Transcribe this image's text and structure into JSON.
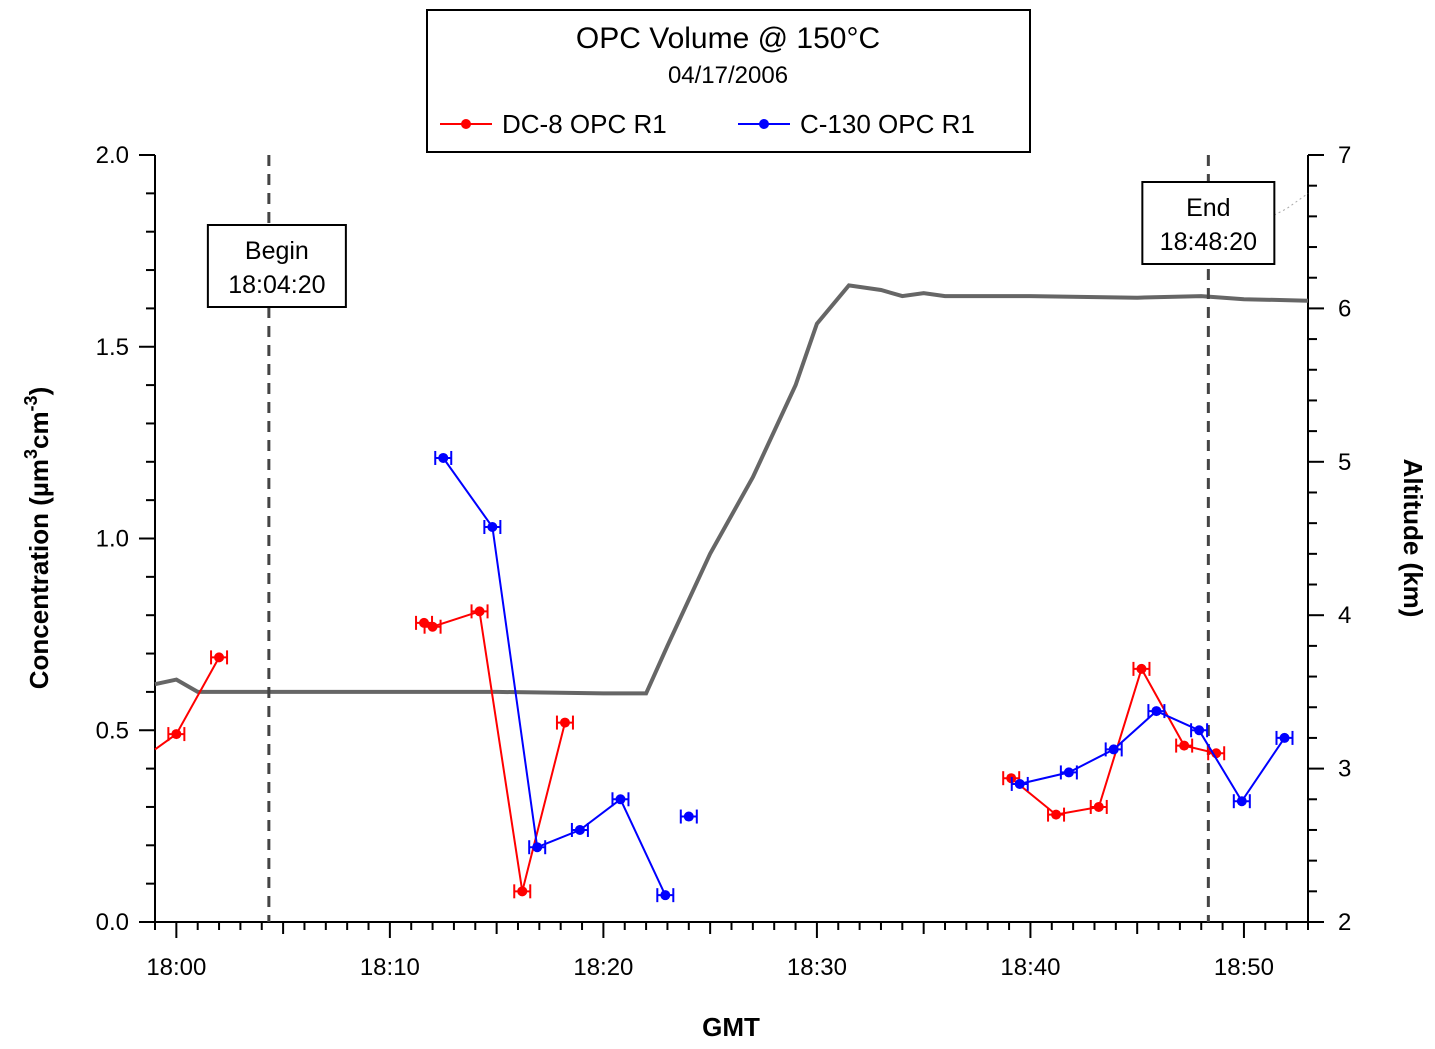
{
  "chart_data": {
    "type": "line",
    "title": "OPC Volume @ 150°C",
    "subtitle": "04/17/2006",
    "xlabel": "GMT",
    "ylabel": "Concentration  (µm³cm⁻³)",
    "ylabel_parts": {
      "main": "Concentration  (µm",
      "sup1": "3",
      "mid": "cm",
      "sup2": "-3",
      "end": ")"
    },
    "y2label": "Altitude  (km)",
    "x_unit": "minutes after 18:00 GMT",
    "xlim": [
      -1,
      53
    ],
    "ylim": [
      0,
      2.0
    ],
    "y2lim": [
      2,
      7
    ],
    "x_ticks": [
      {
        "value": 0,
        "label": "18:00"
      },
      {
        "value": 10,
        "label": "18:10"
      },
      {
        "value": 20,
        "label": "18:20"
      },
      {
        "value": 30,
        "label": "18:30"
      },
      {
        "value": 40,
        "label": "18:40"
      },
      {
        "value": 50,
        "label": "18:50"
      }
    ],
    "y_ticks": [
      {
        "value": 0.0,
        "label": "0.0"
      },
      {
        "value": 0.5,
        "label": "0.5"
      },
      {
        "value": 1.0,
        "label": "1.0"
      },
      {
        "value": 1.5,
        "label": "1.5"
      },
      {
        "value": 2.0,
        "label": "2.0"
      }
    ],
    "y2_ticks": [
      {
        "value": 2,
        "label": "2"
      },
      {
        "value": 3,
        "label": "3"
      },
      {
        "value": 4,
        "label": "4"
      },
      {
        "value": 5,
        "label": "5"
      },
      {
        "value": 6,
        "label": "6"
      },
      {
        "value": 7,
        "label": "7"
      }
    ],
    "series": [
      {
        "name": "DC-8 OPC R1",
        "color": "#ff0000",
        "segments": [
          [
            [
              -1.0,
              0.45
            ],
            [
              0.0,
              0.49
            ],
            [
              2.0,
              0.69
            ]
          ],
          [
            [
              11.6,
              0.78
            ],
            [
              12.0,
              0.77
            ],
            [
              14.2,
              0.81
            ],
            [
              16.2,
              0.08
            ],
            [
              18.2,
              0.52
            ]
          ],
          [
            [
              39.1,
              0.375
            ],
            [
              41.2,
              0.28
            ],
            [
              43.2,
              0.3
            ],
            [
              45.2,
              0.66
            ],
            [
              47.2,
              0.46
            ],
            [
              48.7,
              0.44
            ]
          ]
        ]
      },
      {
        "name": "C-130 OPC R1",
        "color": "#0000ff",
        "segments": [
          [
            [
              12.5,
              1.21
            ],
            [
              14.8,
              1.03
            ],
            [
              16.9,
              0.195
            ],
            [
              18.9,
              0.24
            ],
            [
              20.8,
              0.32
            ],
            [
              22.9,
              0.07
            ]
          ],
          [
            [
              24.0,
              0.275
            ]
          ],
          [
            [
              39.5,
              0.36
            ],
            [
              41.8,
              0.39
            ],
            [
              43.9,
              0.45
            ],
            [
              45.9,
              0.55
            ],
            [
              47.9,
              0.5
            ],
            [
              49.9,
              0.315
            ],
            [
              51.9,
              0.48
            ]
          ]
        ]
      }
    ],
    "altitude": {
      "color": "#666666",
      "points": [
        [
          -1,
          3.55
        ],
        [
          0,
          3.58
        ],
        [
          1,
          3.5
        ],
        [
          5,
          3.5
        ],
        [
          10,
          3.5
        ],
        [
          15,
          3.5
        ],
        [
          20,
          3.49
        ],
        [
          22,
          3.49
        ],
        [
          23,
          3.8
        ],
        [
          25,
          4.4
        ],
        [
          27,
          4.9
        ],
        [
          29,
          5.5
        ],
        [
          30,
          5.9
        ],
        [
          31.5,
          6.15
        ],
        [
          33,
          6.12
        ],
        [
          34,
          6.08
        ],
        [
          35,
          6.1
        ],
        [
          36,
          6.08
        ],
        [
          40,
          6.08
        ],
        [
          45,
          6.07
        ],
        [
          48,
          6.08
        ],
        [
          50,
          6.06
        ],
        [
          53,
          6.05
        ]
      ],
      "trace_points": [
        [
          48.5,
          6.4
        ],
        [
          52,
          6.65
        ],
        [
          53,
          6.75
        ]
      ]
    },
    "markers": [
      {
        "x": 4.333,
        "label_1": "Begin",
        "label_2": "18:04:20"
      },
      {
        "x": 48.333,
        "label_1": "End",
        "label_2": "18:48:20"
      }
    ],
    "legend": {
      "placement": "top-center"
    },
    "grid": false
  }
}
